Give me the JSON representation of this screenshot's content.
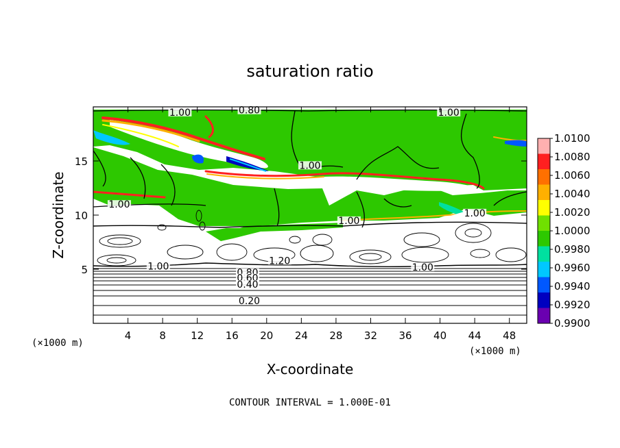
{
  "chart_data": {
    "type": "heatmap",
    "title": "saturation ratio",
    "xlabel": "X-coordinate",
    "ylabel": "Z-coordinate",
    "x_unit": "(×1000 m)",
    "y_unit": "(×1000 m)",
    "xlim": [
      0,
      50
    ],
    "ylim": [
      0,
      20
    ],
    "x_ticks": [
      4,
      8,
      12,
      16,
      20,
      24,
      28,
      32,
      36,
      40,
      44,
      48
    ],
    "y_ticks": [
      5,
      10,
      15
    ],
    "footer": "CONTOUR INTERVAL = 1.000E-01",
    "colorbar": {
      "ticks": [
        "1.0100",
        "1.0080",
        "1.0060",
        "1.0040",
        "1.0020",
        "1.0000",
        "0.9980",
        "0.9960",
        "0.9940",
        "0.9920",
        "0.9900"
      ],
      "colors": [
        "#ffb0b0",
        "#ff2020",
        "#ff7000",
        "#ffb000",
        "#ffff00",
        "#70e000",
        "#2dc800",
        "#00e0a0",
        "#00c8ff",
        "#0058ff",
        "#0000c0",
        "#6a00b0"
      ]
    },
    "contour_labels": [
      {
        "text": "1.00",
        "x": 10,
        "z": 19.5
      },
      {
        "text": "0.80",
        "x": 18,
        "z": 19.7
      },
      {
        "text": "1.00",
        "x": 41,
        "z": 19.5
      },
      {
        "text": "1.00",
        "x": 25,
        "z": 14.6
      },
      {
        "text": "1.00",
        "x": 3,
        "z": 11.0
      },
      {
        "text": "1.00",
        "x": 29.5,
        "z": 9.5
      },
      {
        "text": "1.00",
        "x": 44,
        "z": 10.2
      },
      {
        "text": "1.00",
        "x": 7.5,
        "z": 5.3
      },
      {
        "text": "1.20",
        "x": 21.5,
        "z": 5.8
      },
      {
        "text": "1.00",
        "x": 38,
        "z": 5.2
      },
      {
        "text": "0.80",
        "x": 17.8,
        "z": 4.7
      },
      {
        "text": "0.60",
        "x": 17.8,
        "z": 4.2
      },
      {
        "text": "0.40",
        "x": 17.8,
        "z": 3.6
      },
      {
        "text": "0.20",
        "x": 18,
        "z": 2.1
      }
    ]
  }
}
